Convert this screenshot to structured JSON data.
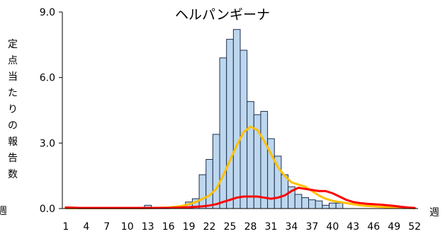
{
  "chart_data": {
    "type": "bar",
    "title": "ヘルパンギーナ",
    "ylabel": "定点当たりの報告数",
    "xlabel": "週",
    "xlabel_left_partial": "週",
    "ylim": [
      0,
      9
    ],
    "yticks": [
      "0.0",
      "3.0",
      "6.0",
      "9.0"
    ],
    "ytick_values": [
      0,
      3,
      6,
      9
    ],
    "x": [
      1,
      2,
      3,
      4,
      5,
      6,
      7,
      8,
      9,
      10,
      11,
      12,
      13,
      14,
      15,
      16,
      17,
      18,
      19,
      20,
      21,
      22,
      23,
      24,
      25,
      26,
      27,
      28,
      29,
      30,
      31,
      32,
      33,
      34,
      35,
      36,
      37,
      38,
      39,
      40,
      41,
      42,
      43,
      44,
      45,
      46,
      47,
      48,
      49,
      50,
      51,
      52
    ],
    "xticks": [
      1,
      4,
      7,
      10,
      13,
      16,
      19,
      22,
      25,
      28,
      31,
      34,
      37,
      40,
      43,
      46,
      49,
      52
    ],
    "grid": false,
    "legend": "none",
    "series": [
      {
        "type": "bar",
        "color": "#bdd7ee",
        "edge_color": "#1f2f4f",
        "values": [
          0,
          0,
          0,
          0,
          0,
          0,
          0,
          0,
          0,
          0,
          0,
          0,
          0.15,
          0.05,
          0,
          0,
          0,
          0.1,
          0.3,
          0.45,
          1.55,
          2.25,
          3.4,
          6.9,
          7.75,
          8.2,
          7.25,
          4.9,
          4.3,
          4.45,
          3.2,
          2.4,
          1.55,
          1.0,
          0.65,
          0.5,
          0.4,
          0.35,
          0.15,
          0.25,
          0.25,
          0,
          0,
          0,
          0,
          0,
          0,
          0,
          0,
          0,
          0,
          0
        ]
      },
      {
        "type": "line",
        "color": "#ffc000",
        "values": [
          0.02,
          0.02,
          0.02,
          0.02,
          0.02,
          0.02,
          0.02,
          0.02,
          0.02,
          0.02,
          0.02,
          0.02,
          0.03,
          0.03,
          0.04,
          0.05,
          0.08,
          0.12,
          0.2,
          0.3,
          0.45,
          0.6,
          0.9,
          1.5,
          2.2,
          2.9,
          3.5,
          3.75,
          3.6,
          3.1,
          2.5,
          1.9,
          1.5,
          1.2,
          1.1,
          1.0,
          0.8,
          0.6,
          0.45,
          0.35,
          0.3,
          0.25,
          0.2,
          0.15,
          0.12,
          0.1,
          0.08,
          0.06,
          0.05,
          0.04,
          0.03,
          0.02
        ]
      },
      {
        "type": "line",
        "color": "#ff0000",
        "values": [
          0.05,
          0.04,
          0.03,
          0.03,
          0.03,
          0.03,
          0.03,
          0.03,
          0.03,
          0.03,
          0.03,
          0.03,
          0.03,
          0.03,
          0.03,
          0.03,
          0.04,
          0.05,
          0.06,
          0.08,
          0.1,
          0.14,
          0.2,
          0.3,
          0.4,
          0.5,
          0.55,
          0.55,
          0.55,
          0.5,
          0.45,
          0.5,
          0.6,
          0.8,
          0.95,
          0.9,
          0.85,
          0.8,
          0.8,
          0.7,
          0.55,
          0.4,
          0.3,
          0.25,
          0.22,
          0.2,
          0.18,
          0.15,
          0.12,
          0.08,
          0.05,
          0.03
        ]
      }
    ]
  }
}
